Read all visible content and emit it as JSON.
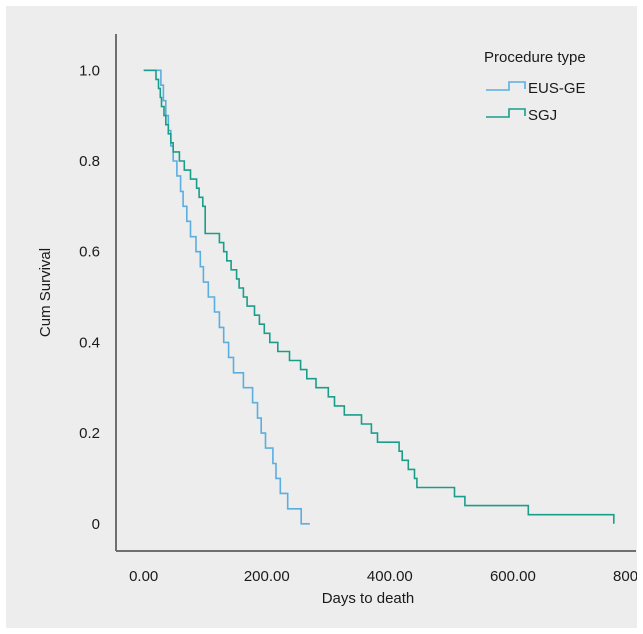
{
  "chart_data": {
    "type": "line",
    "subtype": "kaplan-meier step curve",
    "title": "",
    "xlabel": "Days to death",
    "ylabel": "Cum Survival",
    "xlim": [
      -45,
      800
    ],
    "ylim": [
      -0.06,
      1.08
    ],
    "x_ticks": [
      0,
      200,
      400,
      600,
      800
    ],
    "x_tick_labels": [
      "0.00",
      "200.00",
      "400.00",
      "600.00",
      "800.00"
    ],
    "y_ticks": [
      0,
      0.2,
      0.4,
      0.6,
      0.8,
      1.0
    ],
    "y_tick_labels": [
      "0",
      "0.2",
      "0.4",
      "0.6",
      "0.8",
      "1.0"
    ],
    "grid": false,
    "legend": {
      "title": "Procedure type",
      "position": "top-right"
    },
    "series": [
      {
        "name": "EUS-GE",
        "color": "#5aaee0",
        "steps": [
          [
            0,
            1.0
          ],
          [
            28,
            0.967
          ],
          [
            32,
            0.933
          ],
          [
            36,
            0.9
          ],
          [
            40,
            0.867
          ],
          [
            44,
            0.833
          ],
          [
            48,
            0.8
          ],
          [
            54,
            0.767
          ],
          [
            60,
            0.733
          ],
          [
            64,
            0.7
          ],
          [
            70,
            0.667
          ],
          [
            76,
            0.633
          ],
          [
            85,
            0.6
          ],
          [
            92,
            0.567
          ],
          [
            97,
            0.533
          ],
          [
            105,
            0.5
          ],
          [
            115,
            0.467
          ],
          [
            123,
            0.433
          ],
          [
            130,
            0.4
          ],
          [
            138,
            0.367
          ],
          [
            146,
            0.333
          ],
          [
            162,
            0.3
          ],
          [
            177,
            0.267
          ],
          [
            185,
            0.233
          ],
          [
            191,
            0.2
          ],
          [
            198,
            0.167
          ],
          [
            210,
            0.133
          ],
          [
            215,
            0.1
          ],
          [
            222,
            0.067
          ],
          [
            234,
            0.033
          ],
          [
            256,
            0.0
          ]
        ],
        "end_x": 270
      },
      {
        "name": "SGJ",
        "color": "#1a9e8a",
        "steps": [
          [
            0,
            1.0
          ],
          [
            20,
            0.98
          ],
          [
            24,
            0.96
          ],
          [
            27,
            0.94
          ],
          [
            29,
            0.92
          ],
          [
            33,
            0.9
          ],
          [
            36,
            0.88
          ],
          [
            40,
            0.86
          ],
          [
            44,
            0.84
          ],
          [
            48,
            0.82
          ],
          [
            58,
            0.8
          ],
          [
            66,
            0.78
          ],
          [
            76,
            0.76
          ],
          [
            86,
            0.74
          ],
          [
            90,
            0.72
          ],
          [
            96,
            0.7
          ],
          [
            100,
            0.64
          ],
          [
            123,
            0.62
          ],
          [
            130,
            0.6
          ],
          [
            135,
            0.58
          ],
          [
            142,
            0.56
          ],
          [
            151,
            0.54
          ],
          [
            155,
            0.52
          ],
          [
            162,
            0.5
          ],
          [
            168,
            0.48
          ],
          [
            180,
            0.46
          ],
          [
            188,
            0.44
          ],
          [
            196,
            0.42
          ],
          [
            205,
            0.4
          ],
          [
            218,
            0.38
          ],
          [
            237,
            0.36
          ],
          [
            255,
            0.34
          ],
          [
            265,
            0.32
          ],
          [
            280,
            0.3
          ],
          [
            300,
            0.28
          ],
          [
            310,
            0.26
          ],
          [
            326,
            0.24
          ],
          [
            354,
            0.22
          ],
          [
            370,
            0.2
          ],
          [
            380,
            0.18
          ],
          [
            415,
            0.16
          ],
          [
            420,
            0.14
          ],
          [
            430,
            0.12
          ],
          [
            440,
            0.1
          ],
          [
            444,
            0.08
          ],
          [
            505,
            0.06
          ],
          [
            522,
            0.04
          ],
          [
            625,
            0.02
          ]
        ],
        "end_x": 764,
        "end_y": 0.0
      }
    ]
  }
}
